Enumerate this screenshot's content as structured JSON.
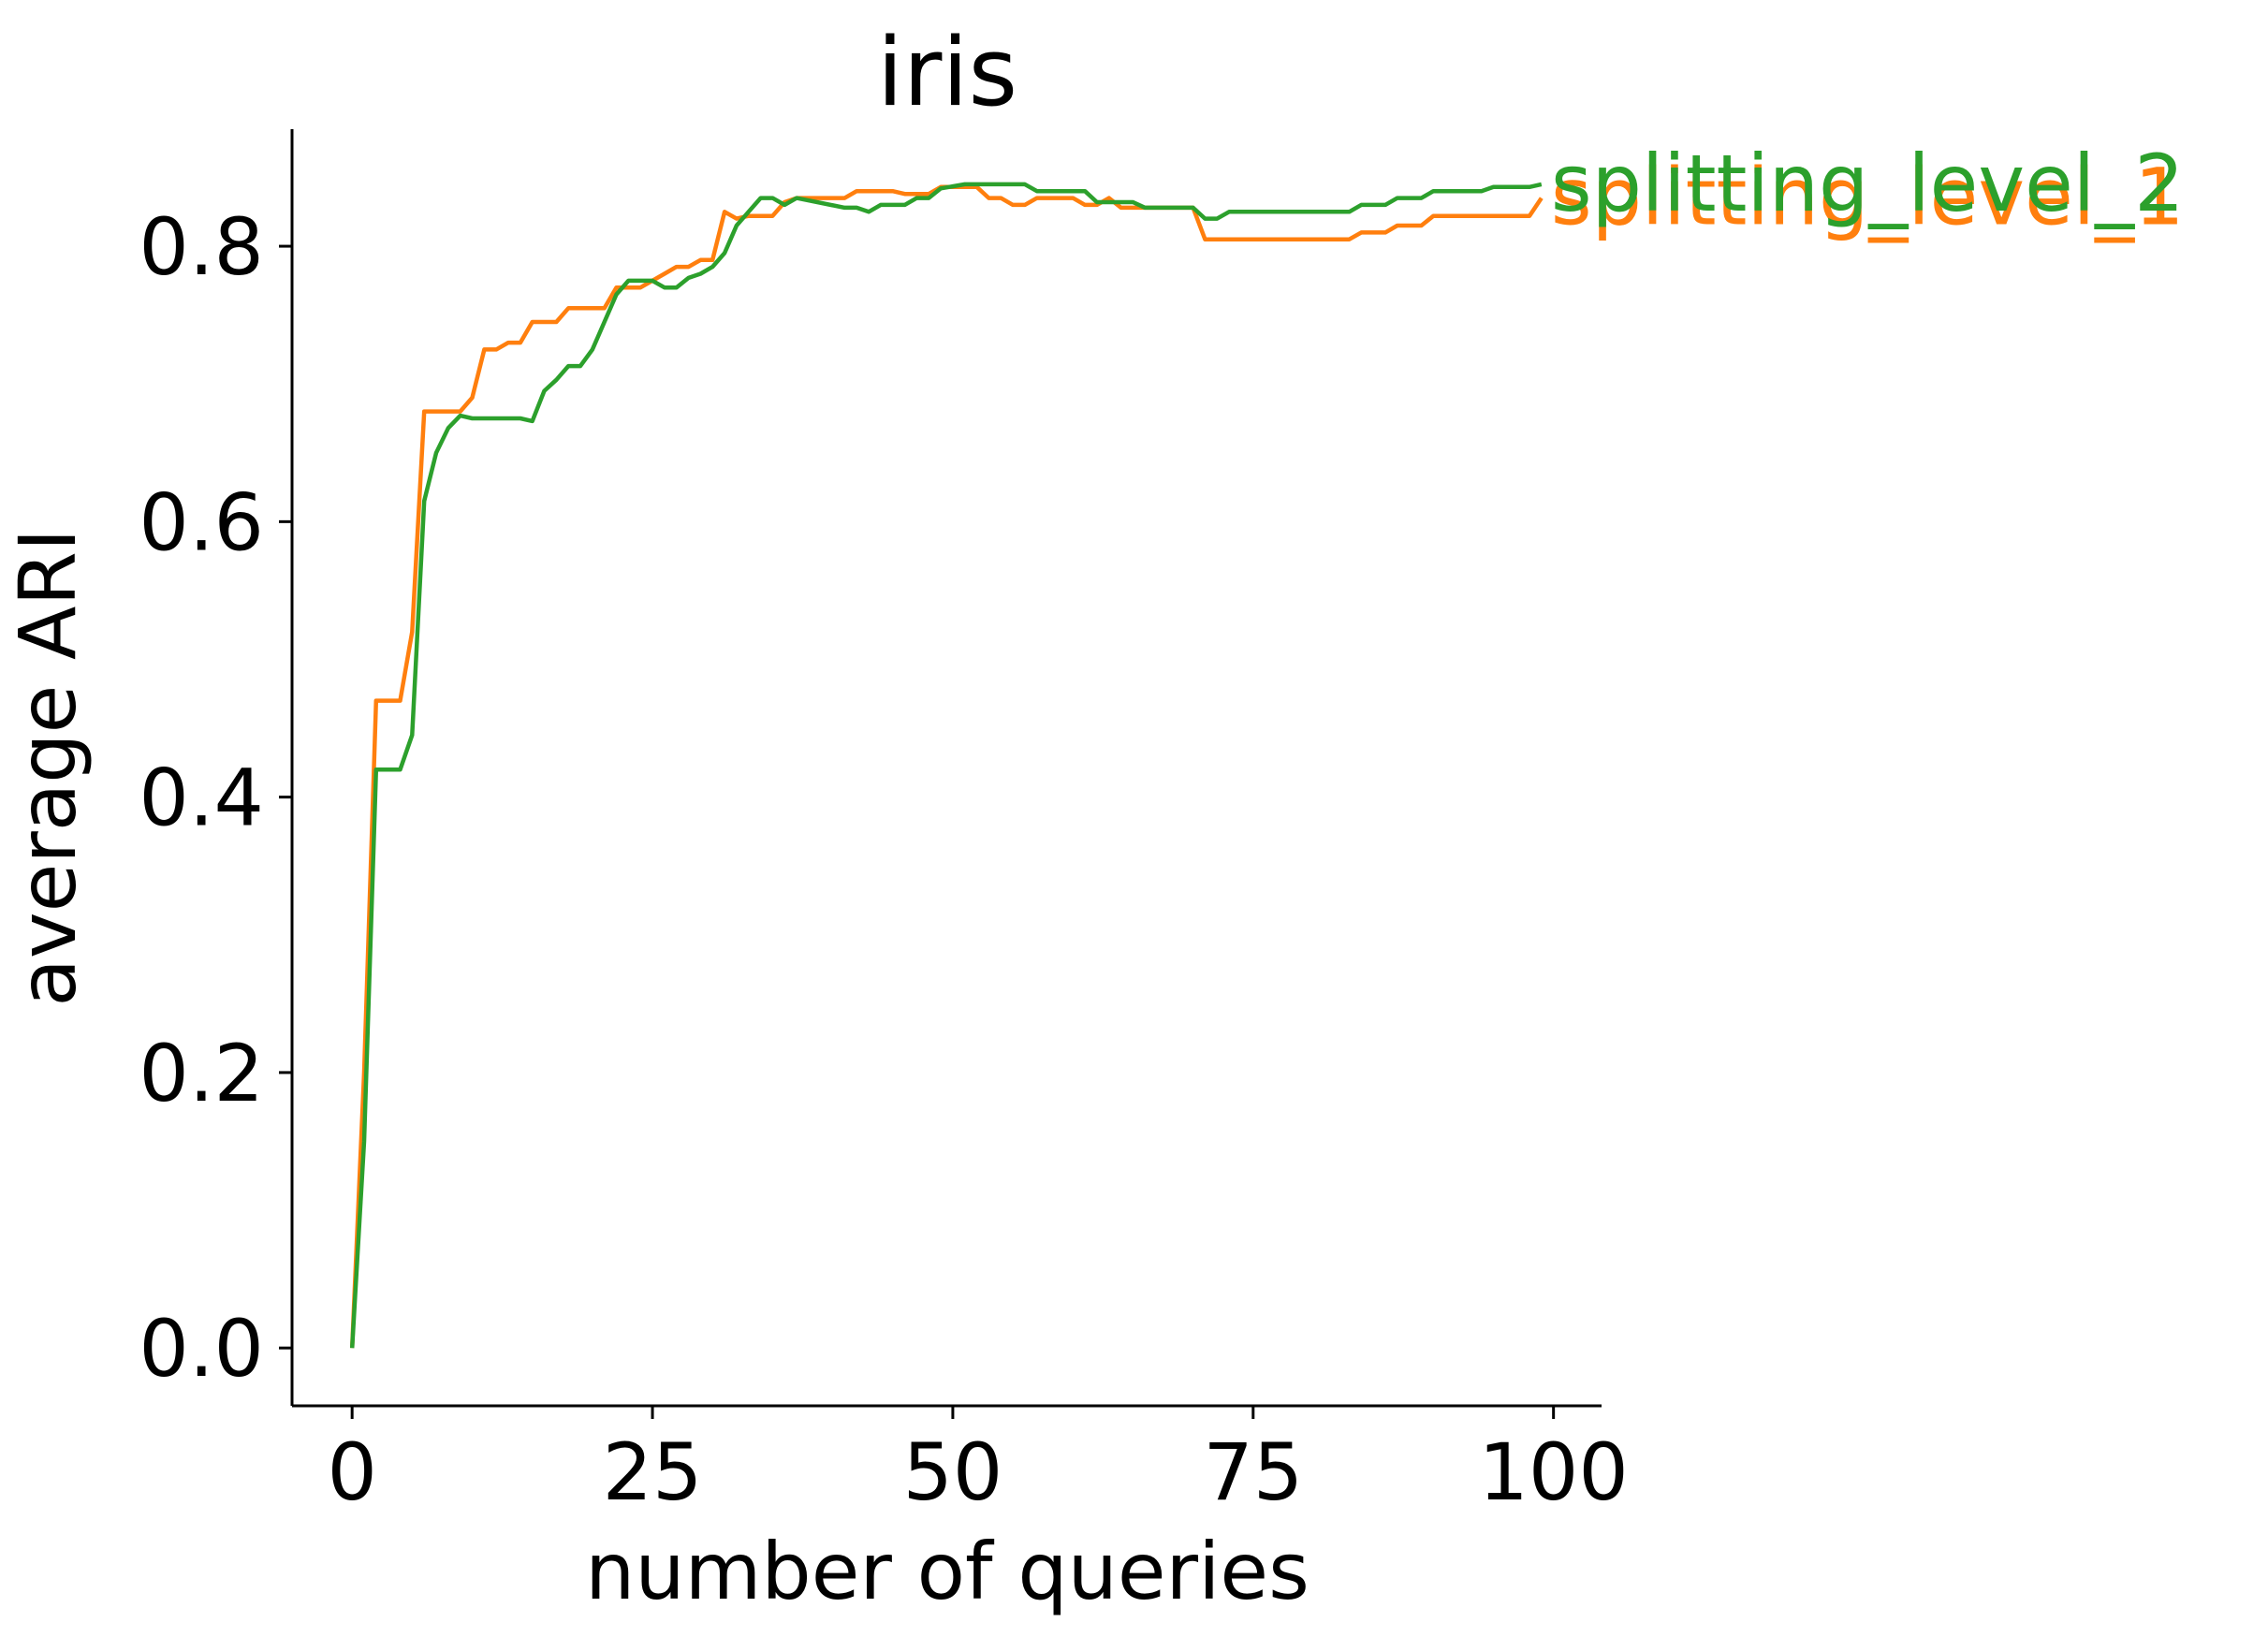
{
  "chart_data": {
    "type": "line",
    "title": "iris",
    "xlabel": "number of queries",
    "ylabel": "average ARI",
    "xlim": [
      -5,
      104
    ],
    "ylim": [
      -0.042,
      0.885
    ],
    "xticks": [
      0,
      25,
      50,
      75,
      100
    ],
    "xtick_labels": [
      "0",
      "25",
      "50",
      "75",
      "100"
    ],
    "yticks": [
      0.0,
      0.2,
      0.4,
      0.6,
      0.8
    ],
    "ytick_labels": [
      "0.0",
      "0.2",
      "0.4",
      "0.6",
      "0.8"
    ],
    "grid": false,
    "legend": "inline labels at line ends (right)",
    "series": [
      {
        "name": "splitting_level_1",
        "color": "#ff7f0e",
        "points": [
          [
            0,
            0.0
          ],
          [
            1,
            0.2
          ],
          [
            2,
            0.47
          ],
          [
            4,
            0.47
          ],
          [
            5,
            0.52
          ],
          [
            6,
            0.68
          ],
          [
            9,
            0.68
          ],
          [
            10,
            0.69
          ],
          [
            11,
            0.725
          ],
          [
            12,
            0.725
          ],
          [
            13,
            0.73
          ],
          [
            14,
            0.73
          ],
          [
            15,
            0.745
          ],
          [
            17,
            0.745
          ],
          [
            18,
            0.755
          ],
          [
            21,
            0.755
          ],
          [
            22,
            0.77
          ],
          [
            24,
            0.77
          ],
          [
            26,
            0.78
          ],
          [
            27,
            0.785
          ],
          [
            28,
            0.785
          ],
          [
            29,
            0.79
          ],
          [
            30,
            0.79
          ],
          [
            31,
            0.825
          ],
          [
            32,
            0.82
          ],
          [
            33,
            0.822
          ],
          [
            35,
            0.822
          ],
          [
            36,
            0.832
          ],
          [
            37,
            0.835
          ],
          [
            41,
            0.835
          ],
          [
            42,
            0.84
          ],
          [
            45,
            0.84
          ],
          [
            46,
            0.838
          ],
          [
            48,
            0.838
          ],
          [
            49,
            0.843
          ],
          [
            52,
            0.843
          ],
          [
            53,
            0.835
          ],
          [
            54,
            0.835
          ],
          [
            55,
            0.83
          ],
          [
            56,
            0.83
          ],
          [
            57,
            0.835
          ],
          [
            60,
            0.835
          ],
          [
            61,
            0.83
          ],
          [
            62,
            0.83
          ],
          [
            63,
            0.835
          ],
          [
            64,
            0.828
          ],
          [
            70,
            0.828
          ],
          [
            71,
            0.805
          ],
          [
            83,
            0.805
          ],
          [
            84,
            0.81
          ],
          [
            86,
            0.81
          ],
          [
            87,
            0.815
          ],
          [
            89,
            0.815
          ],
          [
            90,
            0.822
          ],
          [
            98,
            0.822
          ],
          [
            99,
            0.835
          ]
        ]
      },
      {
        "name": "splitting_level_2",
        "color": "#2ca02c",
        "points": [
          [
            0,
            0.0
          ],
          [
            1,
            0.15
          ],
          [
            2,
            0.42
          ],
          [
            4,
            0.42
          ],
          [
            5,
            0.445
          ],
          [
            6,
            0.615
          ],
          [
            7,
            0.65
          ],
          [
            8,
            0.668
          ],
          [
            9,
            0.677
          ],
          [
            10,
            0.675
          ],
          [
            14,
            0.675
          ],
          [
            15,
            0.673
          ],
          [
            16,
            0.695
          ],
          [
            17,
            0.703
          ],
          [
            18,
            0.713
          ],
          [
            19,
            0.713
          ],
          [
            20,
            0.725
          ],
          [
            21,
            0.745
          ],
          [
            22,
            0.765
          ],
          [
            23,
            0.775
          ],
          [
            24,
            0.775
          ],
          [
            25,
            0.775
          ],
          [
            26,
            0.77
          ],
          [
            27,
            0.77
          ],
          [
            28,
            0.777
          ],
          [
            29,
            0.78
          ],
          [
            30,
            0.785
          ],
          [
            31,
            0.795
          ],
          [
            32,
            0.815
          ],
          [
            33,
            0.825
          ],
          [
            34,
            0.835
          ],
          [
            35,
            0.835
          ],
          [
            36,
            0.83
          ],
          [
            37,
            0.835
          ],
          [
            41,
            0.828
          ],
          [
            42,
            0.828
          ],
          [
            43,
            0.825
          ],
          [
            44,
            0.83
          ],
          [
            46,
            0.83
          ],
          [
            47,
            0.835
          ],
          [
            48,
            0.835
          ],
          [
            49,
            0.842
          ],
          [
            51,
            0.845
          ],
          [
            56,
            0.845
          ],
          [
            57,
            0.84
          ],
          [
            61,
            0.84
          ],
          [
            62,
            0.832
          ],
          [
            65,
            0.832
          ],
          [
            66,
            0.828
          ],
          [
            70,
            0.828
          ],
          [
            71,
            0.82
          ],
          [
            72,
            0.82
          ],
          [
            73,
            0.825
          ],
          [
            83,
            0.825
          ],
          [
            84,
            0.83
          ],
          [
            86,
            0.83
          ],
          [
            87,
            0.835
          ],
          [
            89,
            0.835
          ],
          [
            90,
            0.84
          ],
          [
            94,
            0.84
          ],
          [
            95,
            0.843
          ],
          [
            98,
            0.843
          ],
          [
            99,
            0.845
          ]
        ]
      }
    ]
  }
}
